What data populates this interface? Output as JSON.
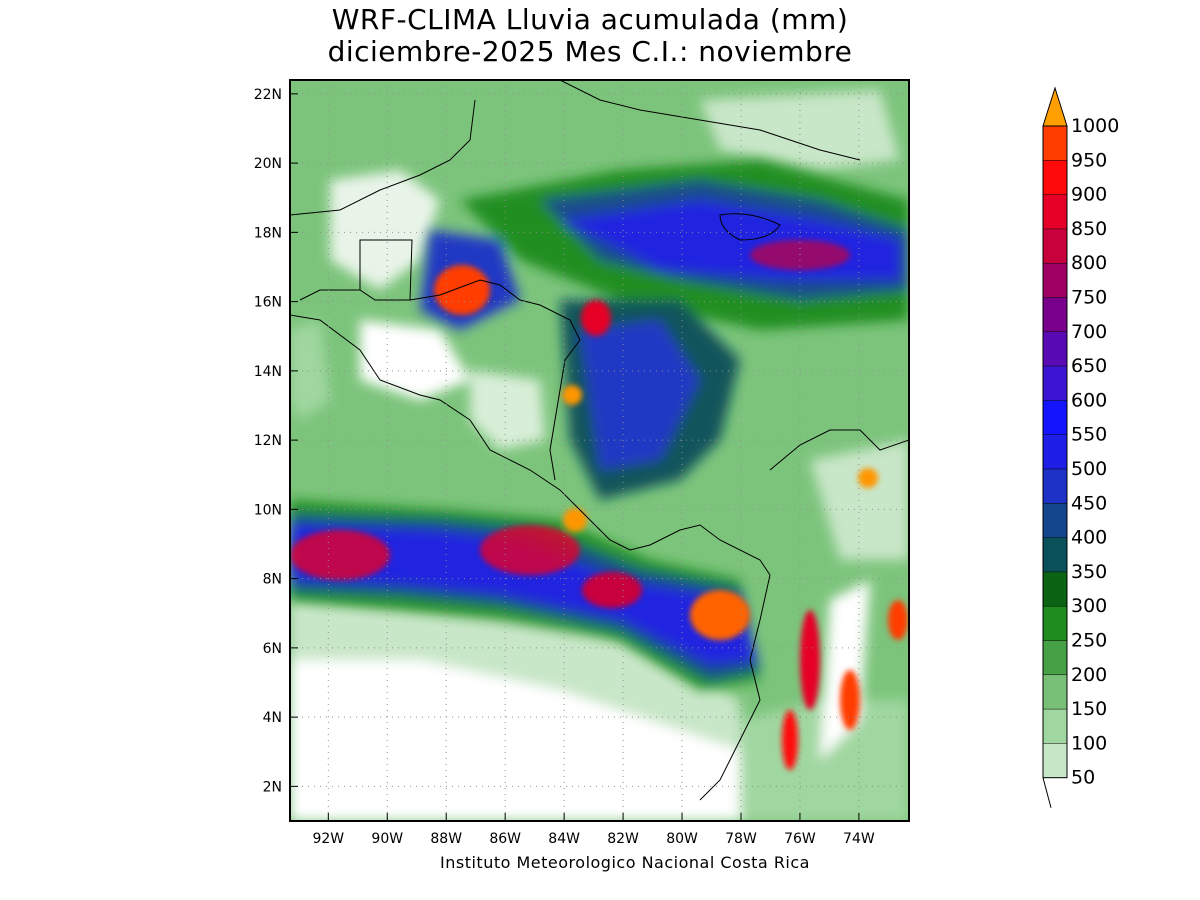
{
  "title": {
    "line1": "WRF-CLIMA Lluvia acumulada (mm)",
    "line2": "diciembre-2025 Mes C.I.: noviembre"
  },
  "footer": "Instituto Meteorologico Nacional Costa Rica",
  "map": {
    "lon_ticks": [
      "92W",
      "90W",
      "88W",
      "86W",
      "84W",
      "82W",
      "80W",
      "78W",
      "76W",
      "74W"
    ],
    "lat_ticks": [
      "22N",
      "20N",
      "18N",
      "16N",
      "14N",
      "12N",
      "10N",
      "8N",
      "6N",
      "4N",
      "2N"
    ],
    "lon_range_deg": [
      -93.3,
      -72.3
    ],
    "lat_range_deg": [
      1.0,
      22.4
    ],
    "grid": true
  },
  "colorbar": {
    "levels": [
      "50",
      "100",
      "150",
      "200",
      "250",
      "300",
      "350",
      "400",
      "450",
      "500",
      "550",
      "600",
      "650",
      "700",
      "750",
      "800",
      "850",
      "900",
      "950",
      "1000"
    ],
    "colors": [
      "#c8e6c8",
      "#a0d7a0",
      "#78c078",
      "#46a046",
      "#1e8c1e",
      "#0a6414",
      "#0a505a",
      "#14468c",
      "#1e32c8",
      "#1e1ee6",
      "#1414ff",
      "#3c14d2",
      "#5a0ab4",
      "#78008c",
      "#a00064",
      "#c8003c",
      "#e60028",
      "#ff0a0a",
      "#ff3c00",
      "#ff6400",
      "#ff9600"
    ],
    "arrow_color": "#ffa000"
  }
}
